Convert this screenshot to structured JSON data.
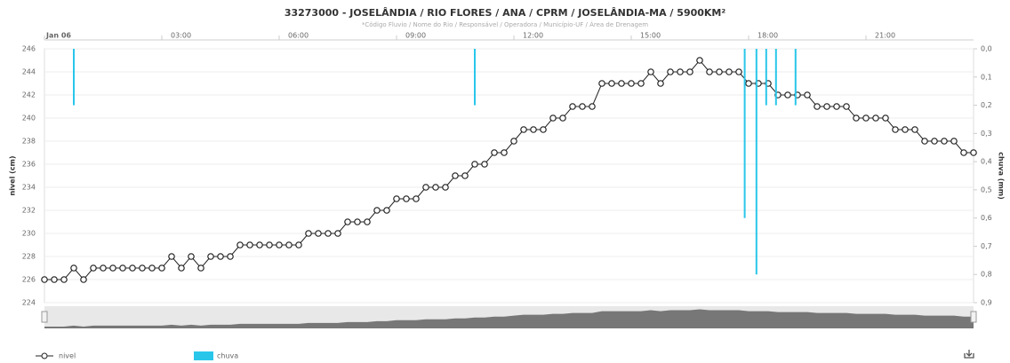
{
  "chart_data": {
    "type": "line",
    "title": "33273000 - JOSELÂNDIA / RIO FLORES / ANA / CPRM / JOSELÂNDIA-MA / 5900KM²",
    "subtitle": "*Código Fluvio / Nome do Rio / Responsável / Operadora / Município-UF / Área de Drenagem",
    "y_label": "nivel (cm)",
    "y2_label": "chuva (mm)",
    "xlim": [
      0,
      23.75
    ],
    "xticks": [
      {
        "value": 0,
        "label": "Jan 06"
      },
      {
        "value": 3,
        "label": "03:00"
      },
      {
        "value": 6,
        "label": "06:00"
      },
      {
        "value": 9,
        "label": "09:00"
      },
      {
        "value": 12,
        "label": "12:00"
      },
      {
        "value": 15,
        "label": "15:00"
      },
      {
        "value": 18,
        "label": "18:00"
      },
      {
        "value": 21,
        "label": "21:00"
      }
    ],
    "ylim": [
      224,
      246
    ],
    "yticks": [
      224,
      226,
      228,
      230,
      232,
      234,
      236,
      238,
      240,
      242,
      244,
      246
    ],
    "y2lim": [
      0,
      0.9
    ],
    "y2_reversed": true,
    "y2ticks": [
      {
        "value": 0,
        "label": "0,0"
      },
      {
        "value": 0.1,
        "label": "0,1"
      },
      {
        "value": 0.2,
        "label": "0,2"
      },
      {
        "value": 0.3,
        "label": "0,3"
      },
      {
        "value": 0.4,
        "label": "0,4"
      },
      {
        "value": 0.5,
        "label": "0,5"
      },
      {
        "value": 0.6,
        "label": "0,6"
      },
      {
        "value": 0.7,
        "label": "0,7"
      },
      {
        "value": 0.8,
        "label": "0,8"
      },
      {
        "value": 0.9,
        "label": "0,9"
      }
    ],
    "grid": true,
    "x": [
      0,
      0.25,
      0.5,
      0.75,
      1,
      1.25,
      1.5,
      1.75,
      2,
      2.25,
      2.5,
      2.75,
      3,
      3.25,
      3.5,
      3.75,
      4,
      4.25,
      4.5,
      4.75,
      5,
      5.25,
      5.5,
      5.75,
      6,
      6.25,
      6.5,
      6.75,
      7,
      7.25,
      7.5,
      7.75,
      8,
      8.25,
      8.5,
      8.75,
      9,
      9.25,
      9.5,
      9.75,
      10,
      10.25,
      10.5,
      10.75,
      11,
      11.25,
      11.5,
      11.75,
      12,
      12.25,
      12.5,
      12.75,
      13,
      13.25,
      13.5,
      13.75,
      14,
      14.25,
      14.5,
      14.75,
      15,
      15.25,
      15.5,
      15.75,
      16,
      16.25,
      16.5,
      16.75,
      17,
      17.25,
      17.5,
      17.75,
      18,
      18.25,
      18.5,
      18.75,
      19,
      19.25,
      19.5,
      19.75,
      20,
      20.25,
      20.5,
      20.75,
      21,
      21.25,
      21.5,
      21.75,
      22,
      22.25,
      22.5,
      22.75,
      23,
      23.25,
      23.5,
      23.75
    ],
    "series": [
      {
        "name": "nivel",
        "type": "line",
        "color": "#222222",
        "values": [
          226,
          226,
          226,
          227,
          226,
          227,
          227,
          227,
          227,
          227,
          227,
          227,
          227,
          228,
          227,
          228,
          227,
          228,
          228,
          228,
          229,
          229,
          229,
          229,
          229,
          229,
          229,
          230,
          230,
          230,
          230,
          231,
          231,
          231,
          232,
          232,
          233,
          233,
          233,
          234,
          234,
          234,
          235,
          235,
          236,
          236,
          237,
          237,
          238,
          239,
          239,
          239,
          240,
          240,
          241,
          241,
          241,
          243,
          243,
          243,
          243,
          243,
          244,
          243,
          244,
          244,
          244,
          245,
          244,
          244,
          244,
          244,
          243,
          243,
          243,
          242,
          242,
          242,
          242,
          241,
          241,
          241,
          241,
          240,
          240,
          240,
          240,
          239,
          239,
          239,
          238,
          238,
          238,
          238,
          237,
          237
        ]
      },
      {
        "name": "chuva",
        "type": "bar",
        "axis": "y2",
        "color": "#29c6ea",
        "x": [
          0.75,
          11,
          17.9,
          18.2,
          18.45,
          18.7,
          19.2
        ],
        "values": [
          0.2,
          0.2,
          0.6,
          0.8,
          0.2,
          0.2,
          0.2
        ]
      }
    ]
  }
}
